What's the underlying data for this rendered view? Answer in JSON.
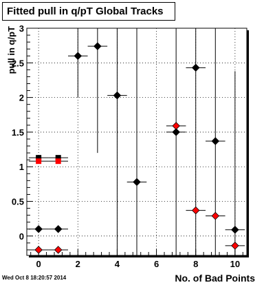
{
  "title": "Fitted pull in q/pT  Global Tracks",
  "timestamp": "Wed Oct  8 18:20:57 2014",
  "chart_data": {
    "type": "scatter",
    "xlabel": "No. of Bad Points",
    "ylabel": "pull in q/pT",
    "xlim": [
      -0.6,
      10.6
    ],
    "ylim": [
      -0.28,
      3.0
    ],
    "xticks": [
      0,
      2,
      4,
      6,
      8,
      10
    ],
    "yticks": [
      0,
      0.5,
      1,
      1.5,
      2,
      2.5,
      3
    ],
    "grid": true,
    "series": [
      {
        "color": "#000000",
        "marker": "diamond",
        "points": [
          {
            "x": 0,
            "y": 0.1,
            "xerr": 0.5,
            "ylo": 0.1,
            "yhi": 0.1
          },
          {
            "x": 1,
            "y": 0.1,
            "xerr": 0.5,
            "ylo": 0.1,
            "yhi": 0.1
          },
          {
            "x": 2,
            "y": 2.6,
            "xerr": 0.5,
            "ylo": 2.0,
            "yhi": 3.0
          },
          {
            "x": 3,
            "y": 2.74,
            "xerr": 0.5,
            "ylo": 1.2,
            "yhi": 3.0
          },
          {
            "x": 4,
            "y": 2.03,
            "xerr": 0.5,
            "ylo": -0.28,
            "yhi": 3.0
          },
          {
            "x": 5,
            "y": 0.78,
            "xerr": 0.5,
            "ylo": -0.28,
            "yhi": 3.0
          },
          {
            "x": 7,
            "y": 1.5,
            "xerr": 0.5,
            "ylo": -0.28,
            "yhi": 3.0
          },
          {
            "x": 8,
            "y": 2.43,
            "xerr": 0.5,
            "ylo": -0.28,
            "yhi": 3.0
          },
          {
            "x": 9,
            "y": 1.37,
            "xerr": 0.5,
            "ylo": -0.28,
            "yhi": 3.0
          },
          {
            "x": 10,
            "y": 0.09,
            "xerr": 0.5,
            "ylo": -0.28,
            "yhi": 2.38
          }
        ]
      },
      {
        "color": "#000000",
        "marker": "square",
        "points": [
          {
            "x": 0,
            "y": 1.13,
            "xerr": 0.5,
            "ylo": 1.13,
            "yhi": 1.13
          },
          {
            "x": 1,
            "y": 1.13,
            "xerr": 0.5,
            "ylo": 1.13,
            "yhi": 1.13
          }
        ]
      },
      {
        "color": "#ff0000",
        "marker": "square",
        "points": [
          {
            "x": 0,
            "y": 1.08,
            "xerr": 0.5,
            "ylo": 1.08,
            "yhi": 1.08
          },
          {
            "x": 1,
            "y": 1.08,
            "xerr": 0.5,
            "ylo": 1.08,
            "yhi": 1.08
          }
        ]
      },
      {
        "color": "#ff0000",
        "marker": "diamond",
        "points": [
          {
            "x": 0,
            "y": -0.2,
            "xerr": 0.5,
            "ylo": -0.2,
            "yhi": -0.2
          },
          {
            "x": 1,
            "y": -0.2,
            "xerr": 0.5,
            "ylo": -0.2,
            "yhi": -0.2
          },
          {
            "x": 7,
            "y": 1.59,
            "xerr": 0.5,
            "ylo": 1.59,
            "yhi": 1.59
          },
          {
            "x": 8,
            "y": 0.37,
            "xerr": 0.5,
            "ylo": 0.37,
            "yhi": 0.37
          },
          {
            "x": 9,
            "y": 0.29,
            "xerr": 0.5,
            "ylo": 0.29,
            "yhi": 0.29
          },
          {
            "x": 10,
            "y": -0.14,
            "xerr": 0.5,
            "ylo": -0.14,
            "yhi": -0.14
          }
        ]
      }
    ]
  }
}
